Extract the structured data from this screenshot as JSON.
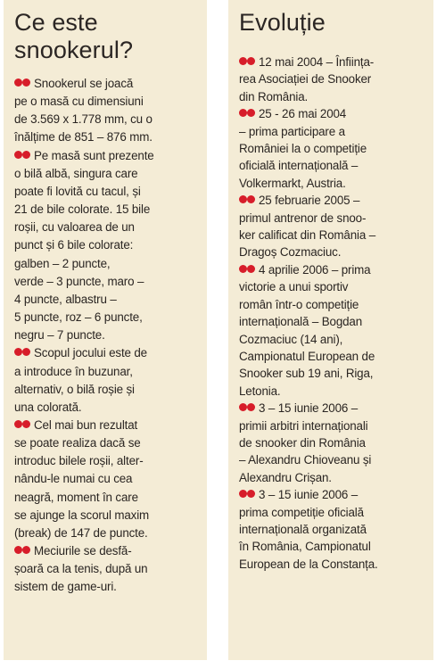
{
  "left": {
    "title": "Ce este snookerul?",
    "items": [
      {
        "bullet_icon": "double-red-dot",
        "lines": [
          "Snookerul se joacă",
          "pe o masă cu dimensiuni",
          "de 3.569 x 1.778 mm, cu o",
          "înălțime de 851 – 876 mm."
        ]
      },
      {
        "bullet_icon": "double-red-dot",
        "lines": [
          "Pe masă sunt prezente",
          "o bilă albă, singura care",
          "poate fi lovită cu tacul, și",
          "21 de bile colorate. 15 bile",
          "roșii, cu valoarea de un",
          "punct și 6 bile colorate:",
          "galben – 2 puncte,",
          "verde – 3 puncte, maro –",
          "4 puncte, albastru –",
          "5 puncte, roz – 6 puncte,",
          "negru – 7 puncte."
        ]
      },
      {
        "bullet_icon": "double-red-dot",
        "lines": [
          "Scopul jocului este de",
          "a introduce în buzunar,",
          "alternativ, o bilă roșie și",
          "una colorată."
        ]
      },
      {
        "bullet_icon": "double-red-dot",
        "lines": [
          "Cel mai bun rezultat",
          "se poate realiza dacă se",
          "introduc bilele roșii, alter-",
          "nându-le numai cu cea",
          "neagră, moment în care",
          "se ajunge la scorul maxim",
          "(break) de 147 de puncte."
        ]
      },
      {
        "bullet_icon": "double-red-dot",
        "lines": [
          "Meciurile se desfă-",
          "șoară ca la tenis, după un",
          "sistem de game-uri."
        ]
      }
    ]
  },
  "right": {
    "title": "Evoluție",
    "items": [
      {
        "bullet_icon": "double-red-dot",
        "lines": [
          "12 mai 2004 – Înființa-",
          "rea Asociației de Snooker",
          "din România."
        ]
      },
      {
        "bullet_icon": "double-red-dot",
        "lines": [
          "25 - 26 mai 2004",
          "– prima participare a",
          "României la o competiție",
          "oficială internațională –",
          "Volkermarkt, Austria."
        ]
      },
      {
        "bullet_icon": "double-red-dot",
        "lines": [
          "25 februarie 2005 –",
          "primul antrenor de snoo-",
          "ker calificat din România –",
          "Dragoș Cozmaciuc."
        ]
      },
      {
        "bullet_icon": "double-red-dot",
        "lines": [
          "4 aprilie 2006 – prima",
          "victorie a unui sportiv",
          "român într-o competiție",
          "internațională – Bogdan",
          "Cozmaciuc (14 ani),",
          "Campionatul European de",
          "Snooker sub 19 ani, Riga,",
          "Letonia."
        ]
      },
      {
        "bullet_icon": "double-red-dot",
        "lines": [
          "3 – 15 iunie 2006 –",
          "primii arbitri internaționali",
          "de snooker din România",
          "– Alexandru Chioveanu și",
          "Alexandru Crișan."
        ]
      },
      {
        "bullet_icon": "double-red-dot",
        "lines": [
          "3 – 15 iunie 2006 –",
          "prima competiție oficială",
          "internațională organizată",
          "în România, Campionatul",
          "European de la Constanța."
        ]
      }
    ]
  },
  "colors": {
    "panel_background": "#f4ecd6",
    "bullet_red": "#d71d2a",
    "text": "#2a2522"
  }
}
